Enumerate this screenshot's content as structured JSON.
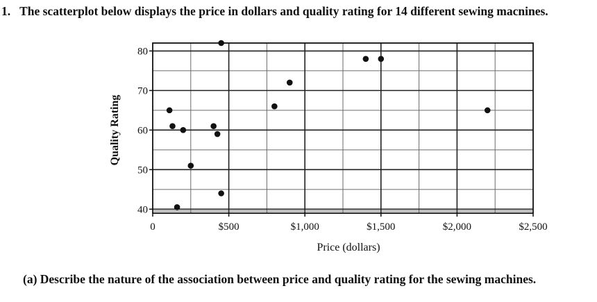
{
  "question": {
    "number": "1.",
    "text": "The scatterplot below displays the price in dollars and quality rating for 14 different sewing macnines."
  },
  "part_a": "(a) Describe the nature of the association between price and quality rating for the sewing machines.",
  "chart_data": {
    "type": "scatter",
    "xlabel": "Price (dollars)",
    "ylabel": "Quality Rating",
    "xlim": [
      0,
      2500
    ],
    "ylim": [
      39,
      82
    ],
    "grid": true,
    "x_ticks": [
      0,
      500,
      1000,
      1500,
      2000,
      2500
    ],
    "x_tick_labels": [
      "0",
      "$500",
      "$1,000",
      "$1,500",
      "$2,000",
      "$2,500"
    ],
    "y_ticks": [
      40,
      50,
      60,
      70,
      80
    ],
    "y_tick_labels": [
      "40",
      "50",
      "60",
      "70",
      "80"
    ],
    "points": [
      {
        "x": 110,
        "y": 65
      },
      {
        "x": 130,
        "y": 61
      },
      {
        "x": 160,
        "y": 40.5
      },
      {
        "x": 200,
        "y": 60
      },
      {
        "x": 250,
        "y": 51
      },
      {
        "x": 400,
        "y": 61
      },
      {
        "x": 425,
        "y": 59
      },
      {
        "x": 450,
        "y": 44
      },
      {
        "x": 450,
        "y": 82
      },
      {
        "x": 800,
        "y": 66
      },
      {
        "x": 900,
        "y": 72
      },
      {
        "x": 1400,
        "y": 78
      },
      {
        "x": 1500,
        "y": 78
      },
      {
        "x": 2200,
        "y": 65
      }
    ]
  }
}
